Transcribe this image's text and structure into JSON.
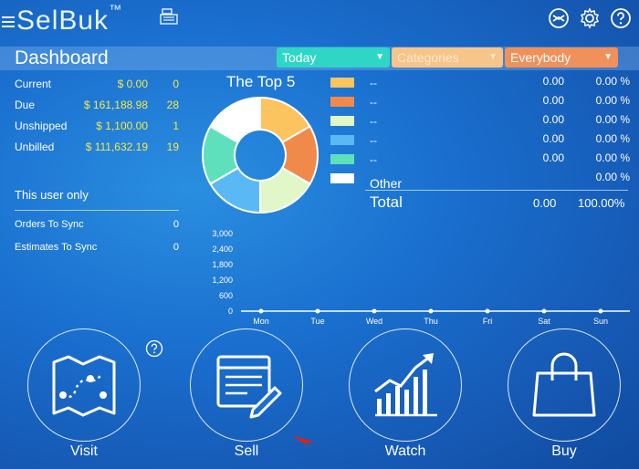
{
  "app": {
    "logo_text": "SelBuk",
    "logo_tm": "™"
  },
  "header": {
    "title": "Dashboard",
    "filters": {
      "period": "Today",
      "categories": "Categories",
      "audience": "Everybody"
    }
  },
  "stats": [
    {
      "label": "Current",
      "amount": "$ 0.00",
      "count": "0"
    },
    {
      "label": "Due",
      "amount": "$ 161,188.98",
      "count": "28"
    },
    {
      "label": "Unshipped",
      "amount": "$ 1,100.00",
      "count": "1"
    },
    {
      "label": "Unbilled",
      "amount": "$ 111,632.19",
      "count": "19"
    }
  ],
  "user_section": {
    "title": "This user only",
    "items": [
      {
        "label": "Orders To Sync",
        "count": "0"
      },
      {
        "label": "Estimates To Sync",
        "count": "0"
      }
    ]
  },
  "top5": {
    "title": "The Top 5",
    "slice_colors": [
      "#fbc45e",
      "#f08a4b",
      "#e2f7c8",
      "#5ab9f5",
      "#5fe0bd",
      "#ffffff"
    ],
    "rows": [
      {
        "name": "--",
        "value": "0.00",
        "pct": "0.00 %",
        "color": "#fbc45e"
      },
      {
        "name": "--",
        "value": "0.00",
        "pct": "0.00 %",
        "color": "#f08a4b"
      },
      {
        "name": "--",
        "value": "0.00",
        "pct": "0.00 %",
        "color": "#e2f7c8"
      },
      {
        "name": "--",
        "value": "0.00",
        "pct": "0.00 %",
        "color": "#5ab9f5"
      },
      {
        "name": "--",
        "value": "0.00",
        "pct": "0.00 %",
        "color": "#5fe0bd"
      },
      {
        "name": "Other",
        "value": "",
        "pct": "0.00 %",
        "color": "#ffffff"
      }
    ],
    "total_label": "Total",
    "total_value": "0.00",
    "total_pct": "100.00%"
  },
  "chart_data": {
    "type": "line",
    "categories": [
      "Mon",
      "Tue",
      "Wed",
      "Thu",
      "Fri",
      "Sat",
      "Sun"
    ],
    "values": [
      0,
      0,
      0,
      0,
      0,
      0,
      0
    ],
    "yticks": [
      "3,000",
      "2,400",
      "1,800",
      "1,200",
      "600",
      "0"
    ],
    "ylim": [
      0,
      3000
    ],
    "title": "",
    "xlabel": "",
    "ylabel": ""
  },
  "actions": [
    {
      "label": "Visit",
      "icon": "map-icon"
    },
    {
      "label": "Sell",
      "icon": "document-pen-icon"
    },
    {
      "label": "Watch",
      "icon": "growth-chart-icon"
    },
    {
      "label": "Buy",
      "icon": "shopping-bag-icon"
    }
  ]
}
